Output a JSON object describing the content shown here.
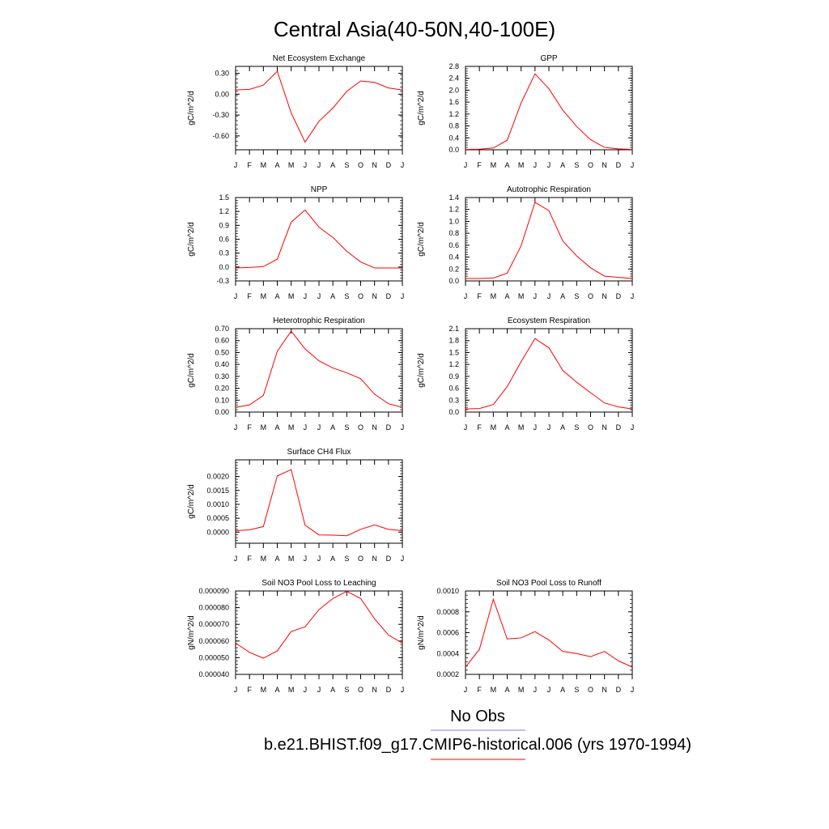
{
  "main_title": "Central Asia(40-50N,40-100E)",
  "legend": [
    {
      "label": "No Obs",
      "color": "#7f7fff"
    },
    {
      "label": "b.e21.BHIST.f09_g17.CMIP6-historical.006 (yrs 1970-1994)",
      "color": "#ff0000"
    }
  ],
  "series_color": "#ff0000",
  "chart_data": [
    {
      "type": "line",
      "title": "Net Ecosystem Exchange",
      "ylabel": "gC/m^2/d",
      "categories": [
        "J",
        "F",
        "M",
        "A",
        "M",
        "J",
        "J",
        "A",
        "S",
        "O",
        "N",
        "D",
        "J"
      ],
      "ylim": [
        -0.8,
        0.4
      ],
      "yticks": [
        -0.6,
        -0.3,
        0.0,
        0.3
      ],
      "ytick_labels": [
        "-0.60",
        "-0.30",
        "0.00",
        "0.30"
      ],
      "values": [
        0.06,
        0.07,
        0.13,
        0.33,
        -0.27,
        -0.69,
        -0.39,
        -0.2,
        0.04,
        0.19,
        0.17,
        0.09,
        0.06
      ]
    },
    {
      "type": "line",
      "title": "GPP",
      "ylabel": "gC/m^2/d",
      "categories": [
        "J",
        "F",
        "M",
        "A",
        "M",
        "J",
        "J",
        "A",
        "S",
        "O",
        "N",
        "D",
        "J"
      ],
      "ylim": [
        0.0,
        2.8
      ],
      "yticks": [
        0.0,
        0.4,
        0.8,
        1.2,
        1.6,
        2.0,
        2.4,
        2.8
      ],
      "ytick_labels": [
        "0.0",
        "0.4",
        "0.8",
        "1.2",
        "1.6",
        "2.0",
        "2.4",
        "2.8"
      ],
      "values": [
        0.01,
        0.02,
        0.06,
        0.32,
        1.57,
        2.55,
        2.05,
        1.33,
        0.78,
        0.34,
        0.08,
        0.03,
        0.01
      ]
    },
    {
      "type": "line",
      "title": "NPP",
      "ylabel": "gC/m^2/d",
      "categories": [
        "J",
        "F",
        "M",
        "A",
        "M",
        "J",
        "J",
        "A",
        "S",
        "O",
        "N",
        "D",
        "J"
      ],
      "ylim": [
        -0.3,
        1.5
      ],
      "yticks": [
        -0.3,
        0.0,
        0.3,
        0.6,
        0.9,
        1.2,
        1.5
      ],
      "ytick_labels": [
        "-0.3",
        "0.0",
        "0.3",
        "0.6",
        "0.9",
        "1.2",
        "1.5"
      ],
      "values": [
        -0.02,
        -0.01,
        0.01,
        0.17,
        0.97,
        1.23,
        0.86,
        0.64,
        0.34,
        0.11,
        -0.02,
        -0.02,
        -0.02
      ]
    },
    {
      "type": "line",
      "title": "Autotrophic Respiration",
      "ylabel": "gC/m^2/d",
      "categories": [
        "J",
        "F",
        "M",
        "A",
        "M",
        "J",
        "J",
        "A",
        "S",
        "O",
        "N",
        "D",
        "J"
      ],
      "ylim": [
        0.0,
        1.4
      ],
      "yticks": [
        0.0,
        0.2,
        0.4,
        0.6,
        0.8,
        1.0,
        1.2,
        1.4
      ],
      "ytick_labels": [
        "0.0",
        "0.2",
        "0.4",
        "0.6",
        "0.8",
        "1.0",
        "1.2",
        "1.4"
      ],
      "values": [
        0.04,
        0.04,
        0.05,
        0.13,
        0.59,
        1.32,
        1.18,
        0.67,
        0.42,
        0.22,
        0.08,
        0.06,
        0.04
      ]
    },
    {
      "type": "line",
      "title": "Heterotrophic Respiration",
      "ylabel": "gC/m^2/d",
      "categories": [
        "J",
        "F",
        "M",
        "A",
        "M",
        "J",
        "J",
        "A",
        "S",
        "O",
        "N",
        "D",
        "J"
      ],
      "ylim": [
        0.0,
        0.7
      ],
      "yticks": [
        0.0,
        0.1,
        0.2,
        0.3,
        0.4,
        0.5,
        0.6,
        0.7
      ],
      "ytick_labels": [
        "0.00",
        "0.10",
        "0.20",
        "0.30",
        "0.40",
        "0.50",
        "0.60",
        "0.70"
      ],
      "values": [
        0.04,
        0.06,
        0.14,
        0.51,
        0.68,
        0.53,
        0.43,
        0.37,
        0.33,
        0.28,
        0.15,
        0.07,
        0.04
      ]
    },
    {
      "type": "line",
      "title": "Ecosystem Respiration",
      "ylabel": "gC/m^2/d",
      "categories": [
        "J",
        "F",
        "M",
        "A",
        "M",
        "J",
        "J",
        "A",
        "S",
        "O",
        "N",
        "D",
        "J"
      ],
      "ylim": [
        0.0,
        2.1
      ],
      "yticks": [
        0.0,
        0.3,
        0.6,
        0.9,
        1.2,
        1.5,
        1.8,
        2.1
      ],
      "ytick_labels": [
        "0.0",
        "0.3",
        "0.6",
        "0.9",
        "1.2",
        "1.5",
        "1.8",
        "2.1"
      ],
      "values": [
        0.08,
        0.09,
        0.19,
        0.64,
        1.27,
        1.85,
        1.62,
        1.05,
        0.75,
        0.49,
        0.23,
        0.13,
        0.08
      ]
    },
    {
      "type": "line",
      "title": "Surface CH4 Flux",
      "ylabel": "gC/m^2/d",
      "categories": [
        "J",
        "F",
        "M",
        "A",
        "M",
        "J",
        "J",
        "A",
        "S",
        "O",
        "N",
        "D",
        "J"
      ],
      "ylim": [
        -0.0004,
        0.0026
      ],
      "yticks": [
        0.0,
        0.0005,
        0.001,
        0.0015,
        0.002
      ],
      "ytick_labels": [
        "0.0000",
        "0.0005",
        "0.0010",
        "0.0015",
        "0.0020"
      ],
      "values": [
        5e-05,
        8e-05,
        0.0002,
        0.00202,
        0.00225,
        0.00025,
        -0.0001,
        -0.00011,
        -0.00013,
        0.0001,
        0.00026,
        0.0001,
        5e-05
      ]
    },
    {
      "type": "line",
      "title": "Soil NO3 Pool Loss to Leaching",
      "ylabel": "gN/m^2/d",
      "categories": [
        "J",
        "F",
        "M",
        "A",
        "M",
        "J",
        "J",
        "A",
        "S",
        "O",
        "N",
        "D",
        "J"
      ],
      "ylim": [
        4e-05,
        9e-05
      ],
      "yticks": [
        4e-05,
        5e-05,
        6e-05,
        7e-05,
        8e-05,
        9e-05
      ],
      "ytick_labels": [
        "0.000040",
        "0.000050",
        "0.000060",
        "0.000070",
        "0.000080",
        "0.000090"
      ],
      "values": [
        5.88e-05,
        5.32e-05,
        4.97e-05,
        5.41e-05,
        6.57e-05,
        6.85e-05,
        7.88e-05,
        8.55e-05,
        8.98e-05,
        8.55e-05,
        7.33e-05,
        6.36e-05,
        5.88e-05
      ]
    },
    {
      "type": "line",
      "title": "Soil NO3 Pool Loss to Runoff",
      "ylabel": "gN/m^2/d",
      "categories": [
        "J",
        "F",
        "M",
        "A",
        "M",
        "J",
        "J",
        "A",
        "S",
        "O",
        "N",
        "D",
        "J"
      ],
      "ylim": [
        0.0002,
        0.001
      ],
      "yticks": [
        0.0002,
        0.0004,
        0.0006,
        0.0008,
        0.001
      ],
      "ytick_labels": [
        "0.0002",
        "0.0004",
        "0.0006",
        "0.0008",
        "0.0010"
      ],
      "values": [
        0.00027,
        0.00044,
        0.00092,
        0.00054,
        0.00055,
        0.00061,
        0.00053,
        0.00042,
        0.0004,
        0.00037,
        0.00042,
        0.00033,
        0.00027
      ]
    }
  ]
}
